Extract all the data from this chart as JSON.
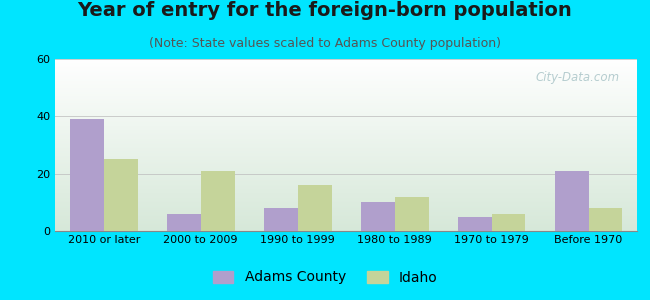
{
  "title": "Year of entry for the foreign-born population",
  "subtitle": "(Note: State values scaled to Adams County population)",
  "categories": [
    "2010 or later",
    "2000 to 2009",
    "1990 to 1999",
    "1980 to 1989",
    "1970 to 1979",
    "Before 1970"
  ],
  "adams_county": [
    39,
    6,
    8,
    10,
    5,
    21
  ],
  "idaho": [
    25,
    21,
    16,
    12,
    6,
    8
  ],
  "adams_color": "#b09fcc",
  "idaho_color": "#c5d49a",
  "background_outer": "#00e5ff",
  "plot_bg_top": "#ffffff",
  "plot_bg_bottom": "#d6ead8",
  "ylim": [
    0,
    60
  ],
  "yticks": [
    0,
    20,
    40,
    60
  ],
  "bar_width": 0.35,
  "title_fontsize": 14,
  "subtitle_fontsize": 9,
  "tick_fontsize": 8,
  "legend_fontsize": 10,
  "watermark_text": "City-Data.com"
}
